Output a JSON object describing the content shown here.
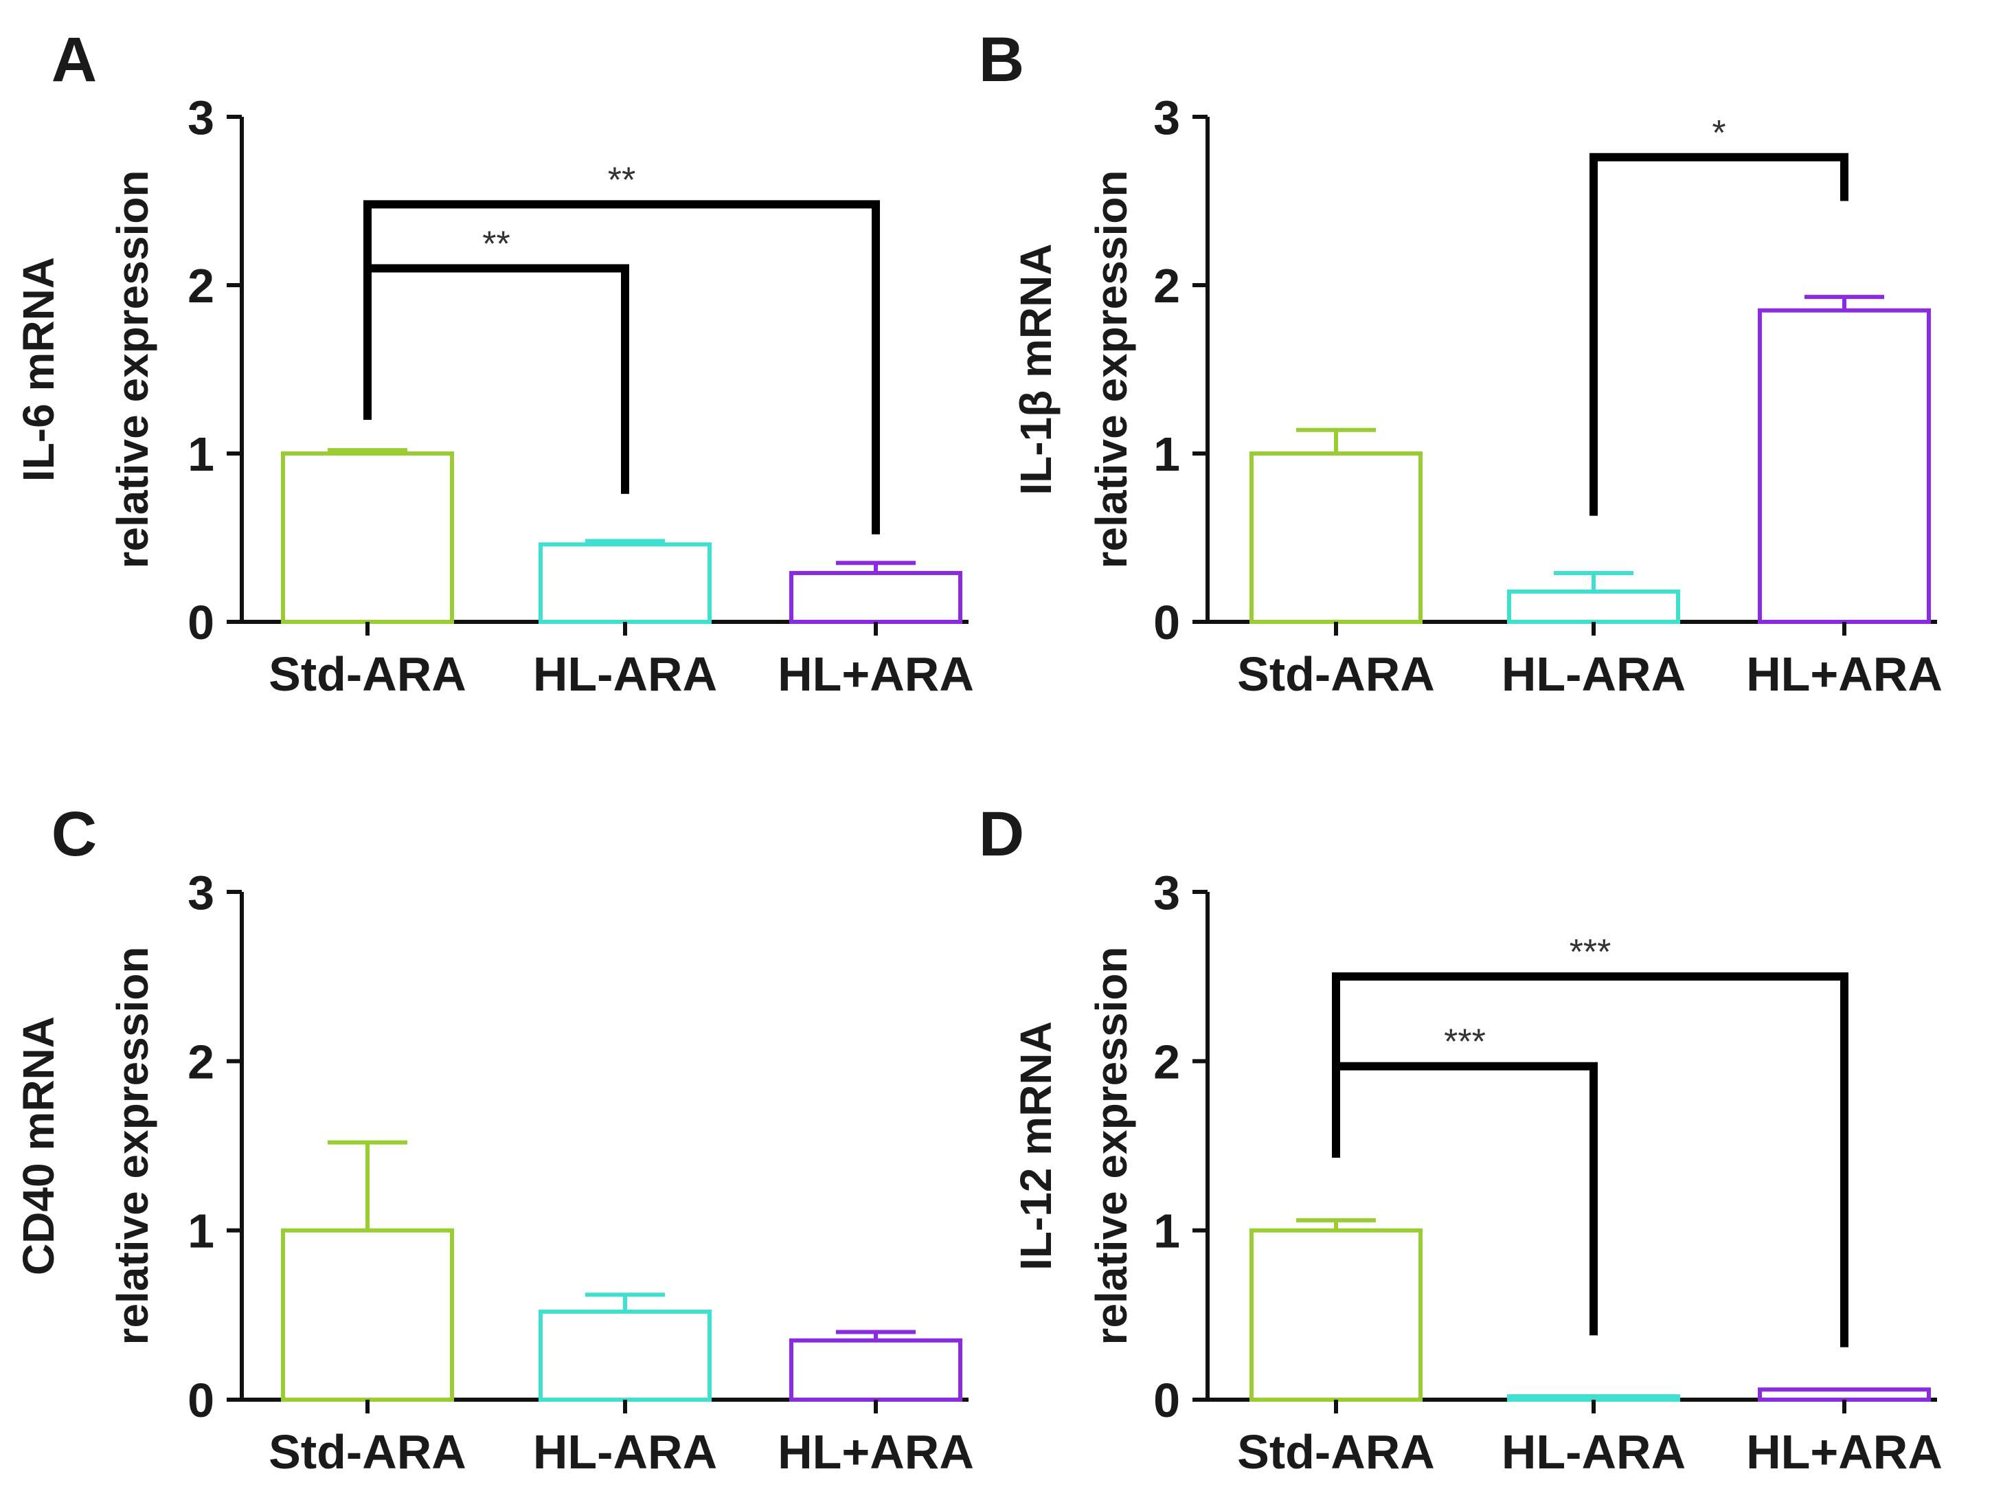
{
  "colors": {
    "Std-ARA": "#9acd32",
    "HL-ARA": "#40e0d0",
    "HL+ARA": "#8a2be2",
    "axis": "#111111",
    "bracket": "#000000"
  },
  "chart_data": [
    {
      "panel": "A",
      "type": "bar",
      "ylabel_line1": "IL-6 mRNA",
      "ylabel_line2": "relative expression",
      "categories": [
        "Std-ARA",
        "HL-ARA",
        "HL+ARA"
      ],
      "values": [
        1.0,
        0.46,
        0.29
      ],
      "errors": [
        0.02,
        0.02,
        0.06
      ],
      "ylim": [
        0,
        3
      ],
      "yticks": [
        "0",
        "1",
        "2",
        "3"
      ],
      "significance": [
        {
          "from": 0,
          "to": 1,
          "level": 2.1,
          "label": "**",
          "drop_from": 1.2,
          "drop_to": 0.76
        },
        {
          "from": 0,
          "to": 2,
          "level": 2.48,
          "label": "**",
          "drop_from": 1.2,
          "drop_to": 0.52
        }
      ]
    },
    {
      "panel": "B",
      "type": "bar",
      "ylabel_line1": "IL-1β mRNA",
      "ylabel_line2": "relative expression",
      "categories": [
        "Std-ARA",
        "HL-ARA",
        "HL+ARA"
      ],
      "values": [
        1.0,
        0.18,
        1.85
      ],
      "errors": [
        0.14,
        0.11,
        0.08
      ],
      "ylim": [
        0,
        3
      ],
      "yticks": [
        "0",
        "1",
        "2",
        "3"
      ],
      "significance": [
        {
          "from": 1,
          "to": 2,
          "level": 2.76,
          "label": "*",
          "drop_from": 0.63,
          "drop_to": 2.5
        }
      ]
    },
    {
      "panel": "C",
      "type": "bar",
      "ylabel_line1": "CD40 mRNA",
      "ylabel_line2": "relative expression",
      "categories": [
        "Std-ARA",
        "HL-ARA",
        "HL+ARA"
      ],
      "values": [
        1.0,
        0.52,
        0.35
      ],
      "errors": [
        0.52,
        0.1,
        0.05
      ],
      "ylim": [
        0,
        3
      ],
      "yticks": [
        "0",
        "1",
        "2",
        "3"
      ],
      "significance": []
    },
    {
      "panel": "D",
      "type": "bar",
      "ylabel_line1": "IL-12 mRNA",
      "ylabel_line2": "relative expression",
      "categories": [
        "Std-ARA",
        "HL-ARA",
        "HL+ARA"
      ],
      "values": [
        1.0,
        0.02,
        0.06
      ],
      "errors": [
        0.06,
        0.0,
        0.0
      ],
      "ylim": [
        0,
        3
      ],
      "yticks": [
        "0",
        "1",
        "2",
        "3"
      ],
      "significance": [
        {
          "from": 0,
          "to": 1,
          "level": 1.97,
          "label": "***",
          "drop_from": 1.43,
          "drop_to": 0.38
        },
        {
          "from": 0,
          "to": 2,
          "level": 2.5,
          "label": "***",
          "drop_from": 1.43,
          "drop_to": 0.31
        }
      ]
    }
  ]
}
